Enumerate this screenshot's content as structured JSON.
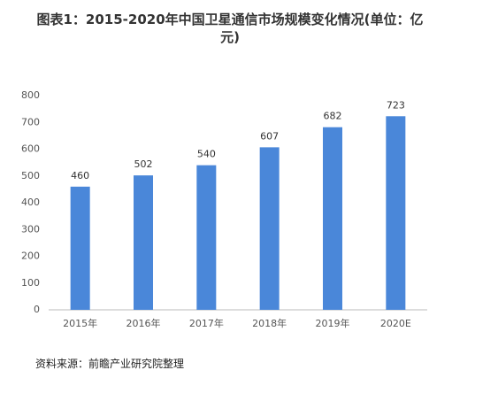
{
  "chart_data": {
    "type": "bar",
    "title": "图表1：2015-2020年中国卫星通信市场规模变化情况(单位：亿元)",
    "categories": [
      "2015年",
      "2016年",
      "2017年",
      "2018年",
      "2019年",
      "2020E"
    ],
    "values": [
      460,
      502,
      540,
      607,
      682,
      723
    ],
    "color": "#4a87d9",
    "ylim": [
      0,
      800
    ],
    "yticks": [
      0,
      100,
      200,
      300,
      400,
      500,
      600,
      700,
      800
    ],
    "grid": false,
    "source": "资料来源：前瞻产业研究院整理"
  }
}
